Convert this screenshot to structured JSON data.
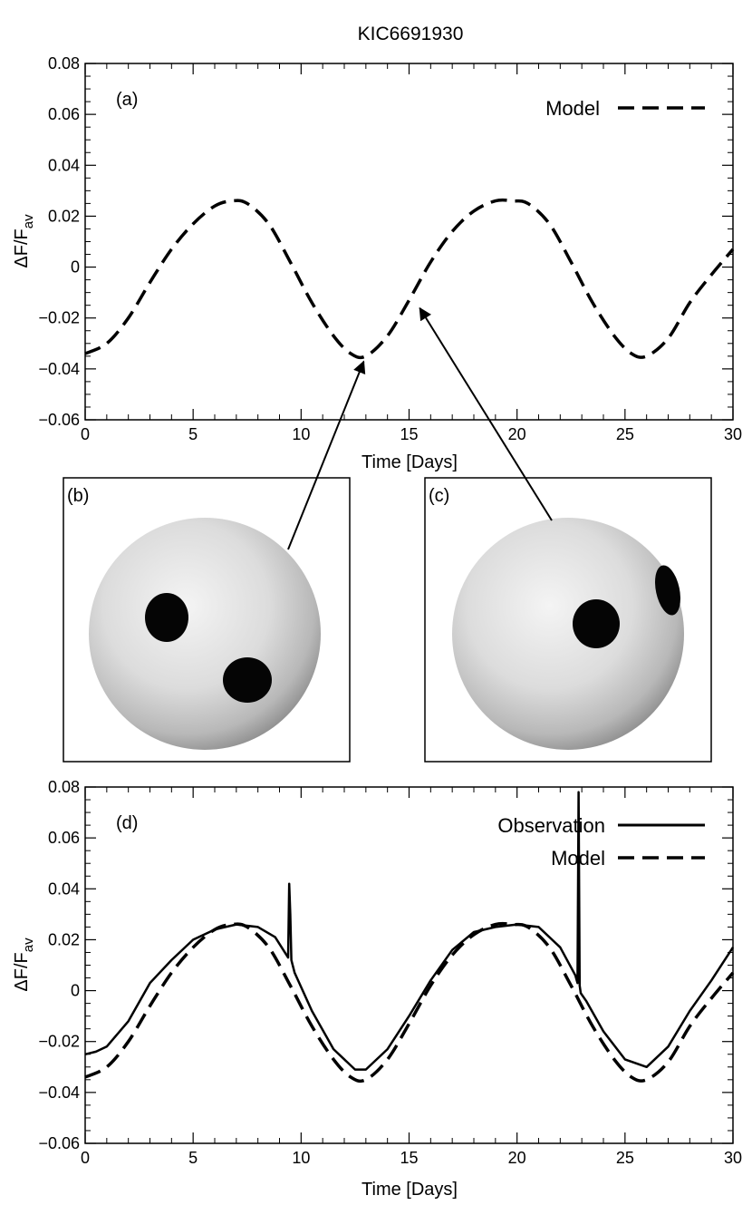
{
  "figure": {
    "title": "KIC6691930",
    "star_spot_color": "#050505"
  },
  "chart_data": [
    {
      "type": "line",
      "panel_label": "(a)",
      "title": "KIC6691930",
      "xlabel": "Time [Days]",
      "ylabel": "ΔF/F",
      "ylabel_sub": "av",
      "xlim": [
        0,
        30
      ],
      "ylim": [
        -0.06,
        0.08
      ],
      "xticks": [
        0,
        5,
        10,
        15,
        20,
        25,
        30
      ],
      "yticks": [
        -0.06,
        -0.04,
        -0.02,
        0,
        0.02,
        0.04,
        0.06,
        0.08
      ],
      "ytick_labels": [
        "−0.06",
        "−0.04",
        "−0.02",
        "0",
        "0.02",
        "0.04",
        "0.06",
        "0.08"
      ],
      "legend": "top-right",
      "series": [
        {
          "name": "Model",
          "style": "dashed",
          "x": [
            0,
            1,
            2,
            3,
            4,
            5,
            6,
            6.8,
            7.5,
            8.5,
            9.5,
            10.5,
            11.5,
            12.3,
            13,
            14,
            15,
            16,
            17,
            18,
            19,
            19.8,
            20.5,
            21.5,
            22.5,
            23.5,
            24.5,
            25.3,
            26,
            27,
            28,
            29,
            30
          ],
          "y": [
            -0.034,
            -0.03,
            -0.02,
            -0.006,
            0.007,
            0.017,
            0.024,
            0.026,
            0.025,
            0.017,
            0.002,
            -0.014,
            -0.027,
            -0.034,
            -0.035,
            -0.027,
            -0.013,
            0.002,
            0.014,
            0.022,
            0.026,
            0.026,
            0.025,
            0.017,
            0.002,
            -0.014,
            -0.027,
            -0.034,
            -0.035,
            -0.028,
            -0.014,
            -0.003,
            0.007
          ]
        }
      ],
      "annotations": [
        {
          "from_panel": "(b)",
          "points_to": [
            12.9,
            -0.035
          ]
        },
        {
          "from_panel": "(c)",
          "points_to": [
            15.5,
            -0.014
          ]
        }
      ]
    },
    {
      "type": "line",
      "panel_label": "(d)",
      "xlabel": "Time [Days]",
      "ylabel": "ΔF/F",
      "ylabel_sub": "av",
      "xlim": [
        0,
        30
      ],
      "ylim": [
        -0.06,
        0.08
      ],
      "xticks": [
        0,
        5,
        10,
        15,
        20,
        25,
        30
      ],
      "yticks": [
        -0.06,
        -0.04,
        -0.02,
        0,
        0.02,
        0.04,
        0.06,
        0.08
      ],
      "ytick_labels": [
        "−0.06",
        "−0.04",
        "−0.02",
        "0",
        "0.02",
        "0.04",
        "0.06",
        "0.08"
      ],
      "legend": "top-right",
      "series": [
        {
          "name": "Observation",
          "style": "solid",
          "x": [
            0,
            0.5,
            1,
            2,
            3,
            4,
            5,
            6,
            7,
            8,
            8.8,
            9.4,
            9.45,
            9.5,
            9.55,
            9.7,
            10.5,
            11.5,
            12.5,
            13,
            14,
            15,
            16,
            17,
            18,
            19,
            20,
            21,
            22,
            22.7,
            22.8,
            22.85,
            22.9,
            22.95,
            23.2,
            24,
            25,
            26,
            27,
            28,
            29,
            30
          ],
          "y": [
            -0.025,
            -0.024,
            -0.022,
            -0.012,
            0.003,
            0.012,
            0.02,
            0.024,
            0.026,
            0.025,
            0.021,
            0.013,
            0.042,
            0.03,
            0.012,
            0.007,
            -0.008,
            -0.023,
            -0.031,
            -0.031,
            -0.023,
            -0.01,
            0.004,
            0.016,
            0.023,
            0.025,
            0.026,
            0.025,
            0.017,
            0.006,
            0.003,
            0.078,
            0.002,
            -0.001,
            -0.004,
            -0.016,
            -0.027,
            -0.03,
            -0.022,
            -0.008,
            0.004,
            0.017
          ]
        },
        {
          "name": "Model",
          "style": "dashed",
          "x": [
            0,
            1,
            2,
            3,
            4,
            5,
            6,
            6.8,
            7.5,
            8.5,
            9.5,
            10.5,
            11.5,
            12.3,
            13,
            14,
            15,
            16,
            17,
            18,
            19,
            19.8,
            20.5,
            21.5,
            22.5,
            23.5,
            24.5,
            25.3,
            26,
            27,
            28,
            29,
            30
          ],
          "y": [
            -0.034,
            -0.03,
            -0.02,
            -0.006,
            0.007,
            0.017,
            0.024,
            0.026,
            0.025,
            0.017,
            0.002,
            -0.014,
            -0.027,
            -0.034,
            -0.035,
            -0.027,
            -0.013,
            0.002,
            0.014,
            0.022,
            0.026,
            0.026,
            0.025,
            0.017,
            0.002,
            -0.014,
            -0.027,
            -0.034,
            -0.035,
            -0.028,
            -0.014,
            -0.003,
            0.007
          ]
        }
      ]
    }
  ],
  "star_panels": [
    {
      "label": "(b)",
      "spot_count": 2
    },
    {
      "label": "(c)",
      "spot_count": 2
    }
  ]
}
